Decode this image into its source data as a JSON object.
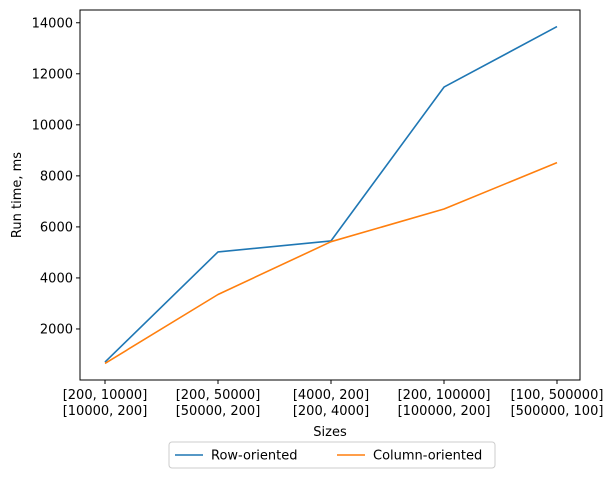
{
  "chart_data": {
    "type": "line",
    "title": "",
    "xlabel": "Sizes",
    "ylabel": "Run time, ms",
    "categories": [
      [
        "[200, 10000]",
        "[10000, 200]"
      ],
      [
        "[200, 50000]",
        "[50000, 200]"
      ],
      [
        "[4000, 200]",
        "[200, 4000]"
      ],
      [
        "[200, 100000]",
        "[100000, 200]"
      ],
      [
        "[100, 500000]",
        "[500000, 100]"
      ]
    ],
    "yticks": [
      2000,
      4000,
      6000,
      8000,
      10000,
      12000,
      14000
    ],
    "ylim": [
      0,
      14500
    ],
    "legend_position": "bottom-center",
    "series": [
      {
        "name": "Row-oriented",
        "color": "#1f77b4",
        "values": [
          700,
          5020,
          5450,
          11480,
          13850
        ]
      },
      {
        "name": "Column-oriented",
        "color": "#ff7f0e",
        "values": [
          650,
          3350,
          5420,
          6700,
          8520
        ]
      }
    ]
  }
}
